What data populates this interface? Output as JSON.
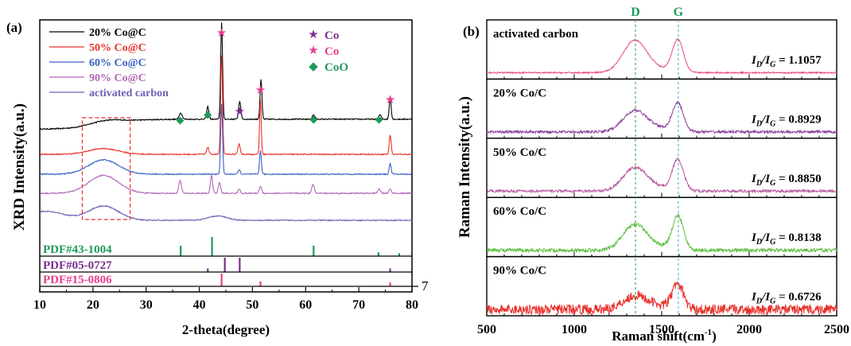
{
  "chart_data": [
    {
      "panel_label": "(a)",
      "type": "line",
      "xlabel": "2-theta(degree)",
      "ylabel": "XRD Intensity(a.u.)",
      "xlim": [
        10,
        80
      ],
      "xticks": [
        10,
        20,
        30,
        40,
        50,
        60,
        70,
        80
      ],
      "grid": false,
      "legend_placement": "top-left",
      "series": [
        {
          "name": "20% Co@C",
          "color": "#000000",
          "broad_hump": 0.1,
          "peaks": [
            [
              36.5,
              0.18,
              0.4
            ],
            [
              41.6,
              0.35,
              0.3
            ],
            [
              44.2,
              2.7,
              0.25
            ],
            [
              47.6,
              0.5,
              0.3
            ],
            [
              51.6,
              1.1,
              0.25
            ],
            [
              61.5,
              0.12,
              0.35
            ],
            [
              74.0,
              0.12,
              0.35
            ],
            [
              75.9,
              0.6,
              0.25
            ]
          ]
        },
        {
          "name": "50% Co@C",
          "color": "#e8302a",
          "broad_hump": 0.16,
          "peaks": [
            [
              41.6,
              0.2,
              0.3
            ],
            [
              44.2,
              2.75,
              0.25
            ],
            [
              47.5,
              0.28,
              0.3
            ],
            [
              51.5,
              1.55,
              0.22
            ],
            [
              75.9,
              0.55,
              0.25
            ]
          ]
        },
        {
          "name": "60% Co@C",
          "color": "#3a5fc2",
          "broad_hump": 0.4,
          "peaks": [
            [
              44.2,
              1.95,
              0.25
            ],
            [
              47.5,
              0.12,
              0.3
            ],
            [
              51.5,
              0.65,
              0.25
            ],
            [
              75.9,
              0.3,
              0.25
            ]
          ]
        },
        {
          "name": "90% Co@C",
          "color": "#b066b8",
          "broad_hump": 0.5,
          "peaks": [
            [
              36.4,
              0.35,
              0.35
            ],
            [
              42.3,
              0.5,
              0.3
            ],
            [
              43.8,
              0.3,
              0.3
            ],
            [
              47.5,
              0.12,
              0.3
            ],
            [
              51.5,
              0.2,
              0.3
            ],
            [
              61.4,
              0.25,
              0.35
            ],
            [
              73.8,
              0.12,
              0.35
            ],
            [
              75.9,
              0.12,
              0.3
            ]
          ]
        },
        {
          "name": "activated carbon",
          "color": "#6f5fb5",
          "broad_hump": 0.4,
          "peaks": [
            [
              43.5,
              0.12,
              2.5
            ]
          ]
        }
      ],
      "legend_markers": [
        {
          "symbol": "★",
          "label": "Co",
          "color": "#7b2d8e"
        },
        {
          "symbol": "★",
          "label": "Co",
          "color": "#e83e8c"
        },
        {
          "symbol": "◆",
          "label": "CoO",
          "color": "#1e9a5a"
        }
      ],
      "peak_markers": [
        {
          "x": 36.4,
          "symbol": "◆",
          "color": "#1e9a5a"
        },
        {
          "x": 41.6,
          "symbol": "◆",
          "color": "#1e9a5a"
        },
        {
          "x": 44.2,
          "symbol": "★",
          "color": "#e83e8c"
        },
        {
          "x": 47.6,
          "symbol": "★",
          "color": "#7b2d8e"
        },
        {
          "x": 51.5,
          "symbol": "★",
          "color": "#e83e8c"
        },
        {
          "x": 61.5,
          "symbol": "◆",
          "color": "#1e9a5a"
        },
        {
          "x": 73.8,
          "symbol": "◆",
          "color": "#1e9a5a"
        },
        {
          "x": 75.9,
          "symbol": "★",
          "color": "#e83e8c"
        }
      ],
      "highlight_region": {
        "x_range": [
          18,
          27
        ],
        "color": "#e8302a"
      },
      "reference_patterns": [
        {
          "label": "PDF#43-1004",
          "color": "#1e9a5a",
          "lines": [
            [
              36.5,
              0.55
            ],
            [
              42.4,
              1.0
            ],
            [
              61.5,
              0.55
            ],
            [
              73.7,
              0.2
            ],
            [
              77.6,
              0.15
            ]
          ]
        },
        {
          "label": "PDF#05-0727",
          "color": "#7b2d8e",
          "lines": [
            [
              41.6,
              0.25
            ],
            [
              44.8,
              1.0
            ],
            [
              47.6,
              1.0
            ],
            [
              75.9,
              0.25
            ]
          ]
        },
        {
          "label": "PDF#15-0806",
          "color": "#e83e8c",
          "lines": [
            [
              44.2,
              1.0
            ],
            [
              51.5,
              0.4
            ],
            [
              75.9,
              0.3
            ]
          ]
        }
      ],
      "edge_annotation": "7"
    },
    {
      "panel_label": "(b)",
      "type": "line",
      "xlabel": "Raman shift(cm",
      "xlabel_superscript": "-1",
      "xlabel_suffix": ")",
      "ylabel": "Raman Intensity(a.u.)",
      "xlim": [
        500,
        2500
      ],
      "xticks": [
        500,
        1000,
        1500,
        2000,
        2500
      ],
      "grid": false,
      "band_markers": [
        {
          "label": "D",
          "x": 1350,
          "color": "#1e9a5a"
        },
        {
          "label": "G",
          "x": 1595,
          "color": "#1e9a5a"
        }
      ],
      "ratio_label": {
        "I": "I",
        "D": "D",
        "G": "G"
      },
      "series": [
        {
          "name": "activated carbon",
          "color": "#e8477e",
          "ratio": "= 1.1057",
          "D_height": 0.7,
          "G_height": 0.72,
          "noise": 0.015
        },
        {
          "name": "20% Co/C",
          "color": "#8c3d9c",
          "ratio": "= 0.8929",
          "D_height": 0.45,
          "G_height": 0.62,
          "noise": 0.03
        },
        {
          "name": "50% Co/C",
          "color": "#b5559c",
          "ratio": "= 0.8850",
          "D_height": 0.5,
          "G_height": 0.68,
          "noise": 0.03
        },
        {
          "name": "60% Co/C",
          "color": "#5cbf3e",
          "ratio": "= 0.8138",
          "D_height": 0.55,
          "G_height": 0.75,
          "noise": 0.04
        },
        {
          "name": "90% Co/C",
          "color": "#e8302a",
          "ratio": "= 0.6726",
          "D_height": 0.28,
          "G_height": 0.55,
          "noise": 0.11
        }
      ]
    }
  ]
}
